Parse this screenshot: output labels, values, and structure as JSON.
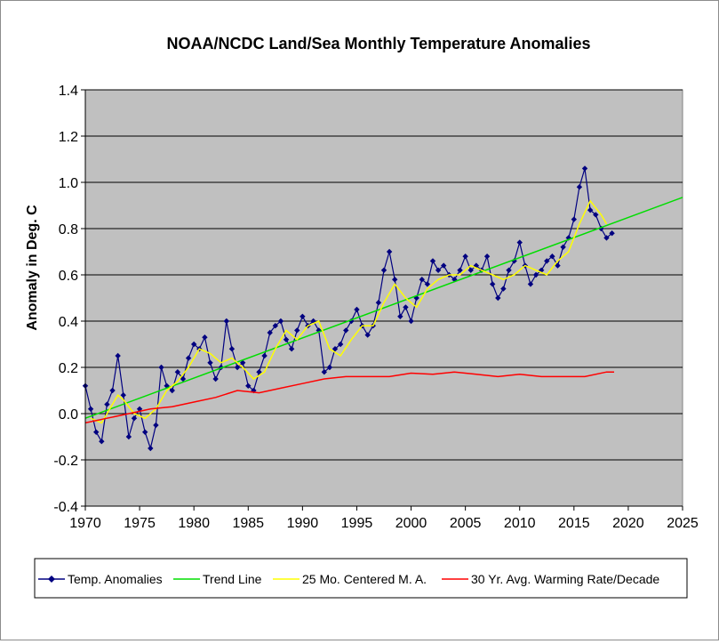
{
  "chart_data": {
    "type": "line",
    "title": "NOAA/NCDC Land/Sea Monthly Temperature Anomalies",
    "xlabel": "",
    "ylabel": "Anomaly in Deg. C",
    "xlim": [
      1970,
      2025
    ],
    "ylim": [
      -0.4,
      1.4
    ],
    "x_ticks": [
      1970,
      1975,
      1980,
      1985,
      1990,
      1995,
      2000,
      2005,
      2010,
      2015,
      2020,
      2025
    ],
    "x_tick_labels": [
      "1970",
      "1975",
      "1980",
      "1985",
      "1990",
      "1995",
      "2000",
      "2005",
      "2010",
      "2015",
      "2020",
      "2025"
    ],
    "y_ticks": [
      -0.4,
      -0.2,
      0.0,
      0.2,
      0.4,
      0.6,
      0.8,
      1.0,
      1.2,
      1.4
    ],
    "y_tick_labels": [
      "-0.4",
      "-0.2",
      "0.0",
      "0.2",
      "0.4",
      "0.6",
      "0.8",
      "1.0",
      "1.2",
      "1.4"
    ],
    "grid": "horizontal",
    "plot_background": "#c0c0c0",
    "legend_position": "bottom",
    "series": [
      {
        "name": "Temp. Anomalies",
        "style": "line-with-diamond-markers",
        "color": "#000080",
        "x": [
          1970.0,
          1970.5,
          1971.0,
          1971.5,
          1972.0,
          1972.5,
          1973.0,
          1973.5,
          1974.0,
          1974.5,
          1975.0,
          1975.5,
          1976.0,
          1976.5,
          1977.0,
          1977.5,
          1978.0,
          1978.5,
          1979.0,
          1979.5,
          1980.0,
          1980.5,
          1981.0,
          1981.5,
          1982.0,
          1982.5,
          1983.0,
          1983.5,
          1984.0,
          1984.5,
          1985.0,
          1985.5,
          1986.0,
          1986.5,
          1987.0,
          1987.5,
          1988.0,
          1988.5,
          1989.0,
          1989.5,
          1990.0,
          1990.5,
          1991.0,
          1991.5,
          1992.0,
          1992.5,
          1993.0,
          1993.5,
          1994.0,
          1994.5,
          1995.0,
          1995.5,
          1996.0,
          1996.5,
          1997.0,
          1997.5,
          1998.0,
          1998.5,
          1999.0,
          1999.5,
          2000.0,
          2000.5,
          2001.0,
          2001.5,
          2002.0,
          2002.5,
          2003.0,
          2003.5,
          2004.0,
          2004.5,
          2005.0,
          2005.5,
          2006.0,
          2006.5,
          2007.0,
          2007.5,
          2008.0,
          2008.5,
          2009.0,
          2009.5,
          2010.0,
          2010.5,
          2011.0,
          2011.5,
          2012.0,
          2012.5,
          2013.0,
          2013.5,
          2014.0,
          2014.5,
          2015.0,
          2015.5,
          2016.0,
          2016.5,
          2017.0,
          2017.5,
          2018.0,
          2018.5
        ],
        "values": [
          0.12,
          0.02,
          -0.08,
          -0.12,
          0.04,
          0.1,
          0.25,
          0.08,
          -0.1,
          -0.02,
          0.02,
          -0.08,
          -0.15,
          -0.05,
          0.2,
          0.12,
          0.1,
          0.18,
          0.15,
          0.24,
          0.3,
          0.28,
          0.33,
          0.22,
          0.15,
          0.2,
          0.4,
          0.28,
          0.2,
          0.22,
          0.12,
          0.1,
          0.18,
          0.25,
          0.35,
          0.38,
          0.4,
          0.32,
          0.28,
          0.36,
          0.42,
          0.38,
          0.4,
          0.36,
          0.18,
          0.2,
          0.28,
          0.3,
          0.36,
          0.4,
          0.45,
          0.38,
          0.34,
          0.38,
          0.48,
          0.62,
          0.7,
          0.58,
          0.42,
          0.46,
          0.4,
          0.5,
          0.58,
          0.56,
          0.66,
          0.62,
          0.64,
          0.6,
          0.58,
          0.62,
          0.68,
          0.62,
          0.64,
          0.62,
          0.68,
          0.56,
          0.5,
          0.54,
          0.62,
          0.66,
          0.74,
          0.64,
          0.56,
          0.6,
          0.62,
          0.66,
          0.68,
          0.64,
          0.72,
          0.76,
          0.84,
          0.98,
          1.06,
          0.88,
          0.86,
          0.8,
          0.76,
          0.78
        ]
      },
      {
        "name": "Trend Line",
        "style": "line",
        "color": "#00dd00",
        "x": [
          1970,
          2025
        ],
        "values": [
          -0.02,
          0.935
        ]
      },
      {
        "name": "25 Mo. Centered M. A.",
        "style": "line",
        "color": "#ffff00",
        "x": [
          1970.5,
          1971.5,
          1972.5,
          1973.0,
          1973.5,
          1974.5,
          1975.5,
          1976.5,
          1977.5,
          1978.5,
          1979.5,
          1980.5,
          1981.5,
          1982.5,
          1983.5,
          1984.5,
          1985.5,
          1986.5,
          1987.5,
          1988.5,
          1989.5,
          1990.5,
          1991.5,
          1992.5,
          1993.5,
          1994.5,
          1995.5,
          1996.5,
          1997.5,
          1998.5,
          1999.5,
          2000.5,
          2001.5,
          2002.5,
          2003.5,
          2004.5,
          2005.5,
          2006.5,
          2007.5,
          2008.5,
          2009.5,
          2010.5,
          2011.5,
          2012.5,
          2013.5,
          2014.5,
          2015.5,
          2016.5,
          2017.5,
          2018.0
        ],
        "values": [
          -0.02,
          -0.04,
          0.04,
          0.08,
          0.06,
          0.0,
          -0.02,
          0.02,
          0.1,
          0.14,
          0.2,
          0.28,
          0.26,
          0.22,
          0.24,
          0.2,
          0.15,
          0.18,
          0.28,
          0.36,
          0.32,
          0.38,
          0.4,
          0.28,
          0.25,
          0.32,
          0.38,
          0.38,
          0.48,
          0.56,
          0.5,
          0.46,
          0.54,
          0.58,
          0.6,
          0.6,
          0.64,
          0.62,
          0.6,
          0.58,
          0.6,
          0.64,
          0.62,
          0.6,
          0.66,
          0.7,
          0.82,
          0.92,
          0.86,
          0.82
        ]
      },
      {
        "name": "30 Yr. Avg. Warming Rate/Decade",
        "style": "line",
        "color": "#ff0000",
        "x": [
          1970,
          1972,
          1974,
          1976,
          1978,
          1980,
          1982,
          1984,
          1986,
          1988,
          1990,
          1992,
          1994,
          1996,
          1998,
          2000,
          2002,
          2004,
          2006,
          2008,
          2010,
          2012,
          2014,
          2016,
          2018,
          2018.7
        ],
        "values": [
          -0.04,
          -0.02,
          0.0,
          0.02,
          0.03,
          0.05,
          0.07,
          0.1,
          0.09,
          0.11,
          0.13,
          0.15,
          0.16,
          0.16,
          0.16,
          0.175,
          0.17,
          0.18,
          0.17,
          0.16,
          0.17,
          0.16,
          0.16,
          0.16,
          0.18,
          0.18
        ]
      }
    ]
  }
}
